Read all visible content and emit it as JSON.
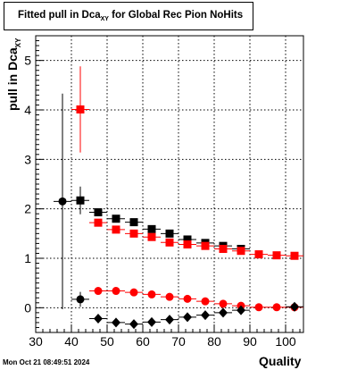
{
  "canvas": {
    "title_main": "Fitted pull in Dca",
    "title_sub": "XY",
    "title_rest": " for Global Rec Pion NoHits",
    "timestamp": "Mon Oct 21 08:49:51 2024"
  },
  "chart_data": {
    "type": "scatter",
    "title": "Fitted pull in Dca_XY for Global Rec Pion NoHits",
    "xlabel": "Quality",
    "ylabel_main": "pull in Dca",
    "ylabel_sub": "XY",
    "xlim": [
      30,
      105
    ],
    "ylim": [
      -0.5,
      5.5
    ],
    "x_ticks": [
      30,
      40,
      50,
      60,
      70,
      80,
      90,
      100
    ],
    "y_ticks": [
      0,
      1,
      2,
      3,
      4,
      5
    ],
    "grid": true,
    "series": [
      {
        "marker": "circle",
        "color": "#000000",
        "points": [
          {
            "x": 37.5,
            "y": 2.15,
            "yerr": 2.18
          },
          {
            "x": 42.5,
            "y": 0.17,
            "yerr": 0.15
          }
        ]
      },
      {
        "marker": "square",
        "color": "#000000",
        "points": [
          {
            "x": 42.5,
            "y": 2.17,
            "yerr": 0.28
          },
          {
            "x": 47.5,
            "y": 1.93,
            "yerr": 0.05
          },
          {
            "x": 52.5,
            "y": 1.8,
            "yerr": 0.04
          },
          {
            "x": 57.5,
            "y": 1.73,
            "yerr": 0.04
          },
          {
            "x": 62.5,
            "y": 1.59,
            "yerr": 0.03
          },
          {
            "x": 67.5,
            "y": 1.5,
            "yerr": 0.03
          },
          {
            "x": 72.5,
            "y": 1.38,
            "yerr": 0.03
          },
          {
            "x": 77.5,
            "y": 1.31,
            "yerr": 0.03
          },
          {
            "x": 82.5,
            "y": 1.25,
            "yerr": 0.02
          },
          {
            "x": 87.5,
            "y": 1.19,
            "yerr": 0.02
          }
        ]
      },
      {
        "marker": "square",
        "color": "#ff0000",
        "points": [
          {
            "x": 42.5,
            "y": 4.01,
            "yerr": 0.87
          },
          {
            "x": 47.5,
            "y": 1.72,
            "yerr": 0.05
          },
          {
            "x": 52.5,
            "y": 1.58,
            "yerr": 0.04
          },
          {
            "x": 57.5,
            "y": 1.5,
            "yerr": 0.04
          },
          {
            "x": 62.5,
            "y": 1.43,
            "yerr": 0.03
          },
          {
            "x": 67.5,
            "y": 1.32,
            "yerr": 0.03
          },
          {
            "x": 72.5,
            "y": 1.28,
            "yerr": 0.03
          },
          {
            "x": 77.5,
            "y": 1.25,
            "yerr": 0.02
          },
          {
            "x": 82.5,
            "y": 1.19,
            "yerr": 0.02
          },
          {
            "x": 87.5,
            "y": 1.15,
            "yerr": 0.02
          },
          {
            "x": 92.5,
            "y": 1.08,
            "yerr": 0.02
          },
          {
            "x": 97.5,
            "y": 1.06,
            "yerr": 0.02
          },
          {
            "x": 102.5,
            "y": 1.05,
            "yerr": 0.02
          }
        ]
      },
      {
        "marker": "circle",
        "color": "#ff0000",
        "points": [
          {
            "x": 47.5,
            "y": 0.34,
            "yerr": 0.02
          },
          {
            "x": 52.5,
            "y": 0.34,
            "yerr": 0.02
          },
          {
            "x": 57.5,
            "y": 0.31,
            "yerr": 0.02
          },
          {
            "x": 62.5,
            "y": 0.27,
            "yerr": 0.02
          },
          {
            "x": 67.5,
            "y": 0.22,
            "yerr": 0.02
          },
          {
            "x": 72.5,
            "y": 0.18,
            "yerr": 0.02
          },
          {
            "x": 77.5,
            "y": 0.13,
            "yerr": 0.02
          },
          {
            "x": 82.5,
            "y": 0.08,
            "yerr": 0.02
          },
          {
            "x": 87.5,
            "y": 0.04,
            "yerr": 0.02
          },
          {
            "x": 92.5,
            "y": 0.01,
            "yerr": 0.02
          },
          {
            "x": 97.5,
            "y": 0.01,
            "yerr": 0.02
          },
          {
            "x": 102.5,
            "y": 0.01,
            "yerr": 0.02
          }
        ]
      },
      {
        "marker": "diamond",
        "color": "#000000",
        "points": [
          {
            "x": 47.5,
            "y": -0.22,
            "yerr": 0.02
          },
          {
            "x": 52.5,
            "y": -0.3,
            "yerr": 0.02
          },
          {
            "x": 57.5,
            "y": -0.33,
            "yerr": 0.02
          },
          {
            "x": 62.5,
            "y": -0.29,
            "yerr": 0.02
          },
          {
            "x": 67.5,
            "y": -0.24,
            "yerr": 0.02
          },
          {
            "x": 72.5,
            "y": -0.19,
            "yerr": 0.02
          },
          {
            "x": 77.5,
            "y": -0.15,
            "yerr": 0.02
          },
          {
            "x": 82.5,
            "y": -0.1,
            "yerr": 0.02
          },
          {
            "x": 87.5,
            "y": -0.05,
            "yerr": 0.02
          },
          {
            "x": 102.5,
            "y": 0.02,
            "yerr": 0.02
          }
        ]
      }
    ]
  }
}
